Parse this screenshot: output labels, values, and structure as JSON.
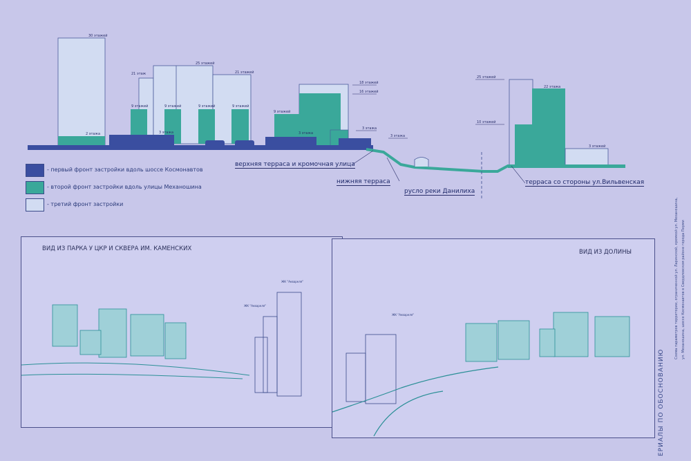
{
  "colors": {
    "first_front": "#3a4ea0",
    "second_front": "#3aa89a",
    "third_front": "#d2dcf2",
    "background": "#c8c7ea",
    "line": "#2a8f96"
  },
  "section": {
    "floor_labels": [
      "30 этажей",
      "2 этажа",
      "3 этажа",
      "21 этаж",
      "25 этажей",
      "21 этажей",
      "9 этажей",
      "9 этажей",
      "9 этажей",
      "9 этажей",
      "9 этажей",
      "18 этажей",
      "16 этажей",
      "3 этажа",
      "3 этажа",
      "3 этажа",
      "25 этажей",
      "22 этажа",
      "10 этажей",
      "3 этажей"
    ],
    "callouts": {
      "upper_terrace": "верхняя терраса и кромочная улица",
      "lower_terrace": "нижняя терраса",
      "riverbed": "русло реки Данилиха",
      "terrace_vilvenskaya": "терраса со стороны ул.Вильвенская"
    }
  },
  "legend": [
    {
      "label": "- первый фронт застройки вдоль шоссе Космонавтов"
    },
    {
      "label": "- второй фронт застройки вдоль улицы Механошина"
    },
    {
      "label": "- третий фронт застройки"
    }
  ],
  "views": {
    "left": {
      "title": "ВИД ИЗ ПАРКА У ЦКР И СКВЕРА ИМ. КАМЕНСКИХ",
      "tags": [
        "ЖК \"Аквареля\"",
        "ЖК \"Аквареля\""
      ]
    },
    "right": {
      "title": "ВИД ИЗ ДОЛИНЫ",
      "tags": [
        "ЖК \"Аквареля\""
      ]
    }
  },
  "side": {
    "title": "ЕРИАЛЫ ПО ОБОСНОВАНИЮ",
    "note_1": "Схема параметров территории, ограниченной ул. Ларинской, кромкой ул. Механошина,",
    "note_2": "ул. Механошина, шоссе Космонавтов в Свердловском районе города Перми"
  }
}
